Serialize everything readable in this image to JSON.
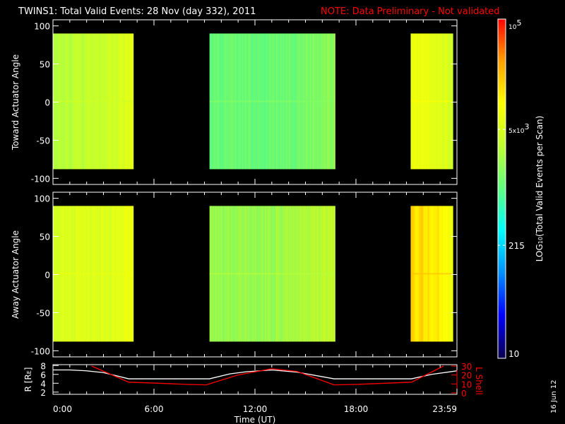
{
  "title": "TWINS1: Total Valid Events: 28 Nov (day 332), 2011",
  "note": "NOTE: Data Preliminary - Not validated",
  "date_stamp": "16 Jun 12",
  "colors": {
    "background": "#000000",
    "axes": "#ffffff",
    "note": "#ff0000",
    "lshell": "#ff0000",
    "radius": "#ffffff"
  },
  "chart_data": [
    {
      "type": "heatmap",
      "ylabel": "Toward Actuator Angle",
      "ylim": [
        -108,
        108
      ],
      "yticks": [
        "100",
        "50",
        "0",
        "-50",
        "-100"
      ],
      "ytick_values": [
        100,
        50,
        0,
        -50,
        -100
      ],
      "xlim_hours": [
        0,
        24
      ],
      "angle_range": [
        -88,
        90
      ],
      "segments": [
        {
          "start_hour": 0.0,
          "end_hour": 4.7,
          "typical_events": 3000,
          "edge_events": 6000
        },
        {
          "start_hour": 9.3,
          "end_hour": 16.7,
          "typical_events": 1100,
          "edge_events": 1800
        },
        {
          "start_hour": 21.25,
          "end_hour": 23.7,
          "typical_events": 7000,
          "edge_events": 4500
        }
      ]
    },
    {
      "type": "heatmap",
      "ylabel": "Away Actuator Angle",
      "ylim": [
        -108,
        108
      ],
      "yticks": [
        "100",
        "50",
        "0",
        "-50",
        "-100"
      ],
      "ytick_values": [
        100,
        50,
        0,
        -50,
        -100
      ],
      "xlim_hours": [
        0,
        24
      ],
      "angle_range": [
        -88,
        90
      ],
      "segments": [
        {
          "start_hour": 0.0,
          "end_hour": 4.7,
          "typical_events": 5000,
          "edge_events": 7000
        },
        {
          "start_hour": 9.3,
          "end_hour": 16.7,
          "typical_events": 2000,
          "edge_events": 3500
        },
        {
          "start_hour": 21.25,
          "end_hour": 23.7,
          "typical_events": 15000,
          "edge_events": 7000
        }
      ]
    },
    {
      "type": "line",
      "xlabel": "Time (UT)",
      "xticks": [
        "0:00",
        "6:00",
        "12:00",
        "18:00",
        "23:59"
      ],
      "xtick_hours": [
        0,
        6,
        12,
        18,
        24
      ],
      "ylabel_left": "R [R",
      "ylabel_left_sub": "E",
      "ylabel_left_end": "]",
      "ylim_left": [
        1.5,
        8.2
      ],
      "yticks_left": [
        "8",
        "6",
        "4",
        "2"
      ],
      "ytick_left_values": [
        8,
        6,
        4,
        2
      ],
      "ylabel_right": "L Shell",
      "ylim_right": [
        0,
        30
      ],
      "yticks_right": [
        "30",
        "20",
        "10",
        "0"
      ],
      "ytick_right_values": [
        30,
        20,
        10,
        0
      ],
      "series": [
        {
          "axis": "left",
          "x": [
            0,
            1,
            2,
            3,
            4.5,
            9.3,
            10.5,
            11.5,
            13,
            14.5,
            16.7,
            21.3,
            22.5,
            24
          ],
          "y": [
            7.0,
            7.0,
            6.8,
            6.4,
            5.0,
            5.0,
            6.1,
            6.6,
            7.0,
            6.5,
            5.0,
            5.0,
            6.0,
            6.8
          ]
        },
        {
          "axis": "right",
          "x": [
            2.3,
            4.5,
            6,
            8,
            9.1,
            11,
            13,
            14.5,
            16.7,
            18,
            21.3,
            23.2
          ],
          "y": [
            30,
            12,
            11,
            9.5,
            9,
            20,
            27,
            24,
            9,
            9.5,
            12,
            30
          ]
        }
      ]
    }
  ],
  "colorbar": {
    "label_main": "LOG",
    "label_sub": "10",
    "label_rest": "(Total Valid Events per Scan)",
    "scale": "log",
    "range": [
      10,
      100000
    ],
    "ticks": [
      {
        "value": 100000,
        "base": "10",
        "exp": "5"
      },
      {
        "value": 5000,
        "base": "5x10",
        "exp": "3"
      },
      {
        "value": 215,
        "base": "215",
        "exp": ""
      },
      {
        "value": 10,
        "base": "10",
        "exp": ""
      }
    ],
    "colormap": [
      "#0a0050",
      "#0000ff",
      "#0090ff",
      "#00ffff",
      "#60ff80",
      "#c0ff30",
      "#ffff00",
      "#ffa000",
      "#ff0000"
    ]
  }
}
